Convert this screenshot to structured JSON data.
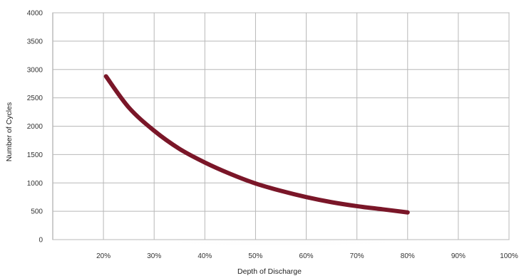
{
  "chart_data": {
    "type": "line",
    "title": "",
    "xlabel": "Depth of Discharge",
    "ylabel": "Number of Cycles",
    "x_tick_labels": [
      "20%",
      "30%",
      "40%",
      "50%",
      "60%",
      "70%",
      "80%",
      "90%",
      "100%"
    ],
    "x_ticks": [
      20,
      30,
      40,
      50,
      60,
      70,
      80,
      90,
      100
    ],
    "y_ticks": [
      0,
      500,
      1000,
      1500,
      2000,
      2500,
      3000,
      3500,
      4000
    ],
    "xlim": [
      10,
      100
    ],
    "ylim": [
      0,
      4000
    ],
    "grid": true,
    "legend": "none",
    "series": [
      {
        "color": "#7a1628",
        "x": [
          20.5,
          25,
          30,
          35,
          40,
          45,
          50,
          55,
          60,
          65,
          70,
          75,
          80
        ],
        "y": [
          2880,
          2330,
          1920,
          1600,
          1360,
          1160,
          990,
          860,
          750,
          660,
          590,
          535,
          480
        ]
      }
    ]
  }
}
